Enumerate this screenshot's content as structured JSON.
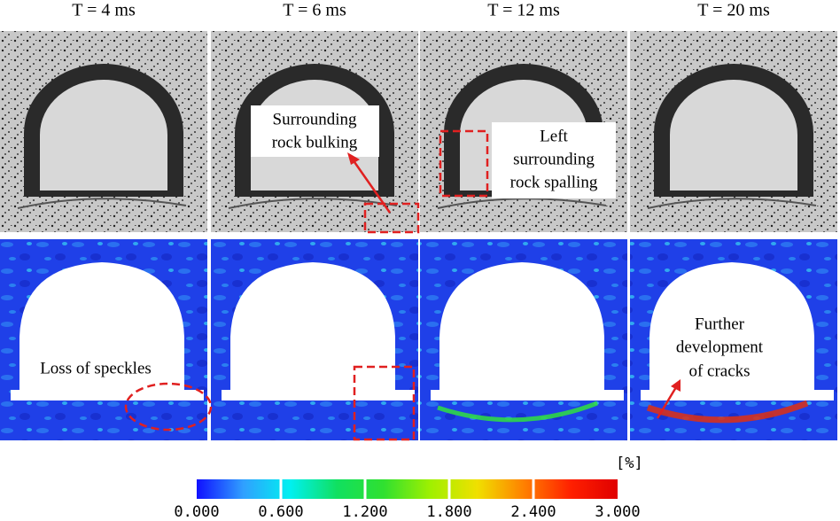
{
  "panels": [
    {
      "time": "T = 4 ms"
    },
    {
      "time": "T = 6 ms"
    },
    {
      "time": "T = 12 ms"
    },
    {
      "time": "T = 20 ms"
    }
  ],
  "annotations": {
    "bulking": [
      "Surrounding",
      "rock bulking"
    ],
    "spalling": [
      "Left",
      "surrounding",
      "rock spalling"
    ],
    "speckles": [
      "Loss of speckles"
    ],
    "cracks": [
      "Further",
      "development",
      "of cracks"
    ]
  },
  "colorbar": {
    "unit": "[%]",
    "lim": [
      0,
      3
    ],
    "colors": [
      "#1010ff",
      "#30a0ff",
      "#00f0f0",
      "#10e060",
      "#30e030",
      "#a0f000",
      "#f0e000",
      "#ff8000",
      "#ff2000",
      "#e00000"
    ],
    "ticks": [
      {
        "value": 0,
        "label": "0.000"
      },
      {
        "value": 0.6,
        "label": "0.600"
      },
      {
        "value": 1.2,
        "label": "1.200"
      },
      {
        "value": 1.8,
        "label": "1.800"
      },
      {
        "value": 2.4,
        "label": "2.400"
      },
      {
        "value": 3,
        "label": "3.000"
      }
    ]
  }
}
